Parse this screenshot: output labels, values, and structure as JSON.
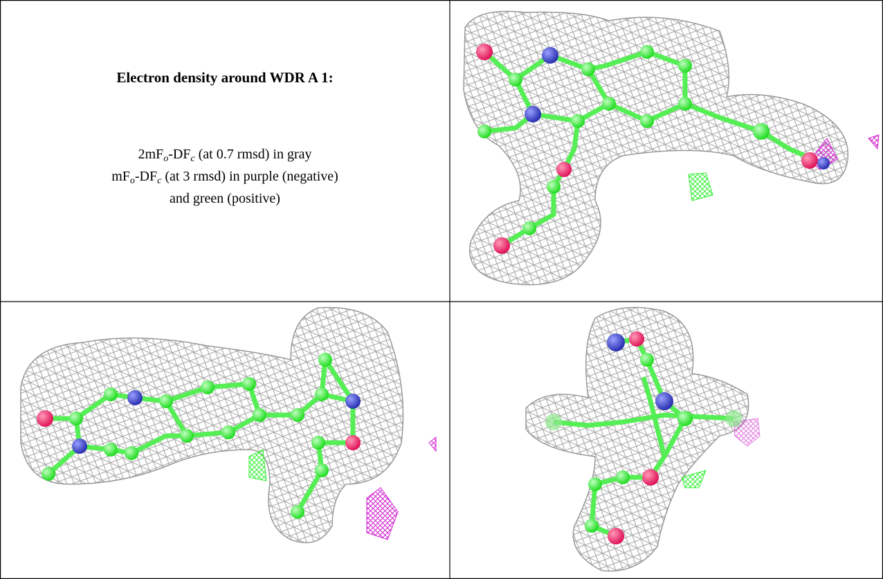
{
  "figure": {
    "title": "Electron density around WDR A 1:",
    "legend_lines": [
      [
        "2mF",
        "o",
        "-DF",
        "c",
        " (at 0.7 rmsd) in gray"
      ],
      [
        "mF",
        "o",
        "-DF",
        "c",
        " (at 3 rmsd) in purple (negative)"
      ],
      [
        "and green (positive)"
      ]
    ]
  }
}
